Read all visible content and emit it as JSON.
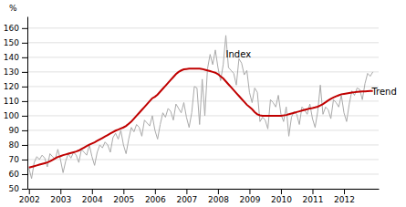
{
  "chart_data": {
    "type": "line",
    "ylabel": "%",
    "x": [
      2002.0,
      2002.083333,
      2002.166667,
      2002.25,
      2002.333333,
      2002.416667,
      2002.5,
      2002.583333,
      2002.666667,
      2002.75,
      2002.833333,
      2002.916667,
      2003.0,
      2003.083333,
      2003.166667,
      2003.25,
      2003.333333,
      2003.416667,
      2003.5,
      2003.583333,
      2003.666667,
      2003.75,
      2003.833333,
      2003.916667,
      2004.0,
      2004.083333,
      2004.166667,
      2004.25,
      2004.333333,
      2004.416667,
      2004.5,
      2004.583333,
      2004.666667,
      2004.75,
      2004.833333,
      2004.916667,
      2005.0,
      2005.083333,
      2005.166667,
      2005.25,
      2005.333333,
      2005.416667,
      2005.5,
      2005.583333,
      2005.666667,
      2005.75,
      2005.833333,
      2005.916667,
      2006.0,
      2006.083333,
      2006.166667,
      2006.25,
      2006.333333,
      2006.416667,
      2006.5,
      2006.583333,
      2006.666667,
      2006.75,
      2006.833333,
      2006.916667,
      2007.0,
      2007.083333,
      2007.166667,
      2007.25,
      2007.333333,
      2007.416667,
      2007.5,
      2007.583333,
      2007.666667,
      2007.75,
      2007.833333,
      2007.916667,
      2008.0,
      2008.083333,
      2008.166667,
      2008.25,
      2008.333333,
      2008.416667,
      2008.5,
      2008.583333,
      2008.666667,
      2008.75,
      2008.833333,
      2008.916667,
      2009.0,
      2009.083333,
      2009.166667,
      2009.25,
      2009.333333,
      2009.416667,
      2009.5,
      2009.583333,
      2009.666667,
      2009.75,
      2009.833333,
      2009.916667,
      2010.0,
      2010.083333,
      2010.166667,
      2010.25,
      2010.333333,
      2010.416667,
      2010.5,
      2010.583333,
      2010.666667,
      2010.75,
      2010.833333,
      2010.916667,
      2011.0,
      2011.083333,
      2011.166667,
      2011.25,
      2011.333333,
      2011.416667,
      2011.5,
      2011.583333,
      2011.666667,
      2011.75,
      2011.833333,
      2011.916667,
      2012.0,
      2012.083333,
      2012.166667,
      2012.25,
      2012.333333,
      2012.416667,
      2012.5,
      2012.583333,
      2012.666667,
      2012.75,
      2012.833333,
      2012.916667
    ],
    "series": [
      {
        "color": "#aaaaaa",
        "values": [
          64,
          57,
          68,
          72,
          70,
          73,
          71,
          65,
          74,
          72,
          70,
          77,
          70,
          61,
          69,
          74,
          71,
          75,
          73,
          68,
          77,
          75,
          73,
          80,
          72,
          66,
          75,
          80,
          78,
          82,
          80,
          75,
          85,
          88,
          84,
          90,
          80,
          74,
          84,
          92,
          89,
          94,
          92,
          86,
          97,
          95,
          93,
          100,
          90,
          84,
          94,
          102,
          99,
          105,
          103,
          97,
          108,
          105,
          102,
          109,
          99,
          92,
          102,
          120,
          119,
          94,
          125,
          100,
          132,
          142,
          135,
          145,
          133,
          124,
          135,
          155,
          133,
          131,
          129,
          121,
          139,
          136,
          128,
          131,
          116,
          109,
          119,
          116,
          96,
          99,
          97,
          91,
          111,
          109,
          106,
          114,
          101,
          96,
          106,
          86,
          99,
          103,
          101,
          94,
          106,
          104,
          101,
          108,
          98,
          92,
          103,
          121,
          101,
          106,
          104,
          98,
          111,
          109,
          106,
          114,
          102,
          96,
          108,
          117,
          114,
          119,
          118,
          111,
          122,
          129,
          127,
          130
        ]
      },
      {
        "color": "#c00000",
        "values": [
          64.5,
          65.0,
          65.5,
          66.0,
          66.5,
          67.0,
          67.5,
          68.0,
          68.8,
          69.8,
          70.8,
          71.8,
          72.3,
          73.0,
          73.5,
          74.0,
          74.5,
          75.0,
          75.5,
          76.2,
          77.2,
          78.2,
          79.2,
          80.2,
          81.0,
          81.8,
          82.8,
          83.8,
          84.8,
          85.8,
          86.8,
          87.8,
          88.8,
          89.8,
          90.5,
          91.3,
          92.0,
          93.0,
          94.5,
          96.0,
          98.0,
          100.0,
          102.0,
          104.0,
          106.0,
          108.0,
          110.0,
          112.0,
          113.0,
          114.5,
          116.5,
          118.5,
          120.5,
          122.5,
          124.5,
          126.5,
          128.5,
          130.0,
          131.0,
          131.8,
          132.0,
          132.2,
          132.3,
          132.3,
          132.3,
          132.2,
          132.0,
          131.5,
          131.0,
          130.5,
          130.0,
          129.5,
          128.5,
          127.0,
          125.5,
          123.5,
          121.5,
          119.5,
          117.5,
          115.5,
          113.5,
          111.5,
          109.5,
          107.5,
          106.0,
          104.5,
          102.5,
          101.0,
          100.3,
          100.0,
          100.0,
          100.0,
          100.0,
          100.0,
          100.0,
          100.0,
          100.0,
          100.2,
          100.5,
          101.0,
          101.5,
          102.0,
          102.5,
          103.0,
          103.5,
          104.0,
          104.5,
          105.0,
          105.3,
          105.7,
          106.2,
          107.0,
          108.0,
          109.2,
          110.5,
          111.5,
          112.5,
          113.3,
          114.0,
          114.7,
          115.0,
          115.3,
          115.6,
          115.9,
          116.1,
          116.3,
          116.5,
          116.6,
          116.7,
          116.8,
          116.9,
          117.0
        ]
      }
    ],
    "xlim": [
      2001.95,
      2013.1
    ],
    "xticks": [
      2002,
      2003,
      2004,
      2005,
      2006,
      2007,
      2008,
      2009,
      2010,
      2011,
      2012
    ],
    "ylim": [
      50,
      168
    ],
    "yticks": [
      50,
      60,
      70,
      80,
      90,
      100,
      110,
      120,
      130,
      140,
      150,
      160
    ],
    "grid": true,
    "annotations": [
      {
        "text": "Index",
        "x": 2008.25,
        "y": 140
      },
      {
        "text": "Trend",
        "x": 2012.88,
        "y": 114
      }
    ]
  }
}
